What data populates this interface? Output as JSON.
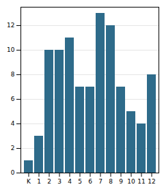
{
  "chart_data": {
    "type": "bar",
    "categories": [
      "K",
      "1",
      "2",
      "3",
      "4",
      "5",
      "6",
      "7",
      "8",
      "9",
      "10",
      "11",
      "12"
    ],
    "values": [
      1,
      3,
      10,
      10,
      11,
      7,
      7,
      13,
      12,
      7,
      5,
      4,
      8
    ],
    "color": "#2e6b8a",
    "ylim": [
      0,
      13.5
    ],
    "yticks": [
      0,
      2,
      4,
      6,
      8,
      10,
      12
    ],
    "grid": true
  }
}
